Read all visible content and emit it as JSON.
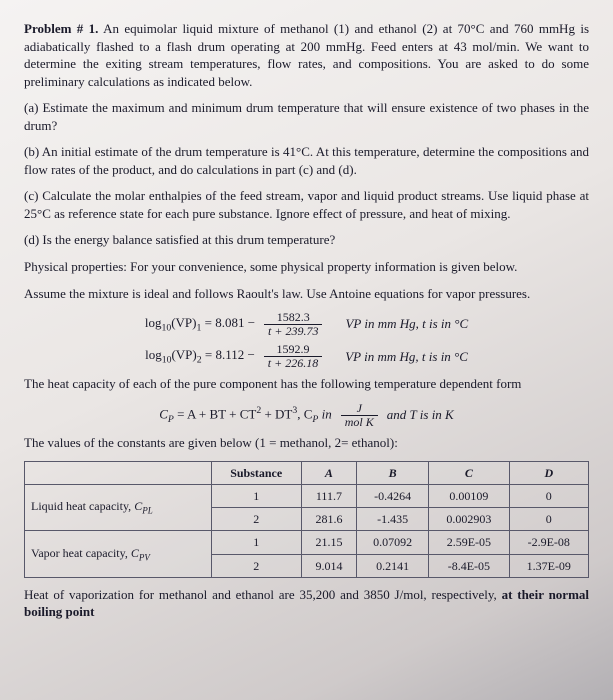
{
  "p1": "Problem # 1.",
  "p1_rest": " An equimolar liquid mixture of methanol (1) and ethanol (2) at 70°C and 760 mmHg is adiabatically flashed to a flash drum operating at 200 mmHg. Feed enters at 43 mol/min. We want to determine the exiting stream temperatures, flow rates, and compositions. You are asked to do some preliminary calculations as indicated below.",
  "pa": "(a) Estimate the maximum and minimum drum temperature that will ensure existence of two phases in the drum?",
  "pb": "(b) An initial estimate of the drum temperature is 41°C. At this temperature, determine the compositions and flow rates of the product, and do calculations in part (c) and (d).",
  "pc": "(c) Calculate the molar enthalpies of the feed stream, vapor and liquid product streams. Use liquid phase at 25°C as reference state for each pure substance. Ignore effect of pressure, and heat of mixing.",
  "pd": "(d) Is the energy balance satisfied at this drum temperature?",
  "pp": "Physical properties: For your convenience, some physical property information is given below.",
  "ass": "Assume the mixture is ideal and follows Raoult's law. Use Antoine equations for vapor pressures.",
  "ant1": {
    "lhs_pre": "log",
    "lhs_sub": "10",
    "lhs_body": "(VP)",
    "lhs_idx": "1",
    "eq": " = 8.081 −",
    "num": "1582.3",
    "den": "t + 239.73",
    "note": "VP in mm Hg, t is in °C"
  },
  "ant2": {
    "lhs_pre": "log",
    "lhs_sub": "10",
    "lhs_body": "(VP)",
    "lhs_idx": "2",
    "eq": " = 8.112 −",
    "num": "1592.9",
    "den": "t + 226.18",
    "note": "VP in mm Hg, t is in °C"
  },
  "cp_intro": "The heat capacity of each of the pure component has the following temperature dependent form",
  "cp_eq": {
    "lhs": "C",
    "lhs_sub": "P",
    "body": " = A + BT + CT",
    "sq": "2",
    "plus": " + DT",
    "cu": "3",
    "comma": ",   C",
    "sub2": "P",
    "in": " in",
    "num": "J",
    "den": "mol K",
    "tail": " and T is in K"
  },
  "vals_intro": "The values of the constants are given below (1 = methanol, 2= ethanol):",
  "table": {
    "headers": [
      "",
      "Substance",
      "A",
      "B",
      "C",
      "D"
    ],
    "rows": [
      [
        "Liquid heat capacity, C_PL",
        "1",
        "111.7",
        "-0.4264",
        "0.00109",
        "0"
      ],
      [
        "",
        "2",
        "281.6",
        "-1.435",
        "0.002903",
        "0"
      ],
      [
        "Vapor heat capacity, C_PV",
        "1",
        "21.15",
        "0.07092",
        "2.59E-05",
        "-2.9E-08"
      ],
      [
        "",
        "2",
        "9.014",
        "0.2141",
        "-8.4E-05",
        "1.37E-09"
      ]
    ],
    "label0_pre": "Liquid heat capacity, ",
    "label0_sym": "C",
    "label0_sub": "PL",
    "label2_pre": "Vapor heat capacity, ",
    "label2_sym": "C",
    "label2_sub": "PV"
  },
  "foot_pre": "Heat of vaporization for methanol and ethanol are 35,200 and 3850 J/mol, respectively, ",
  "foot_bold": "at their normal boiling point"
}
